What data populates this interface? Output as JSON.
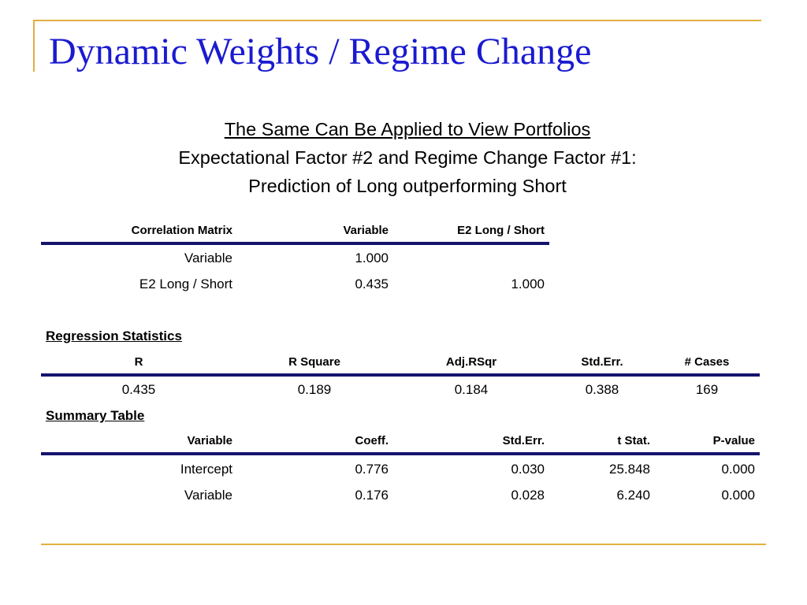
{
  "title": "Dynamic Weights / Regime Change",
  "subtitle": {
    "line1": "The Same Can Be Applied to View Portfolios",
    "line2": "Expectational Factor #2 and Regime Change Factor #1:",
    "line3": "Prediction of Long outperforming Short"
  },
  "correlation": {
    "headers": [
      "Correlation Matrix",
      "Variable",
      "E2 Long / Short"
    ],
    "rows": [
      [
        "Variable",
        "1.000",
        ""
      ],
      [
        "E2 Long / Short",
        "0.435",
        "1.000"
      ]
    ]
  },
  "regression": {
    "heading": "Regression Statistics",
    "headers": [
      "R",
      "R Square",
      "Adj.RSqr",
      "Std.Err.",
      "# Cases"
    ],
    "values": [
      "0.435",
      "0.189",
      "0.184",
      "0.388",
      "169"
    ]
  },
  "summary": {
    "heading": "Summary Table",
    "headers": [
      "Variable",
      "Coeff.",
      "Std.Err.",
      "t Stat.",
      "P-value"
    ],
    "rows": [
      [
        "Intercept",
        "0.776",
        "0.030",
        "25.848",
        "0.000"
      ],
      [
        "Variable",
        "0.176",
        "0.028",
        "6.240",
        "0.000"
      ]
    ]
  },
  "colors": {
    "title": "#1a1ad0",
    "accent_line": "#e0b040",
    "table_rule": "#14146e"
  }
}
